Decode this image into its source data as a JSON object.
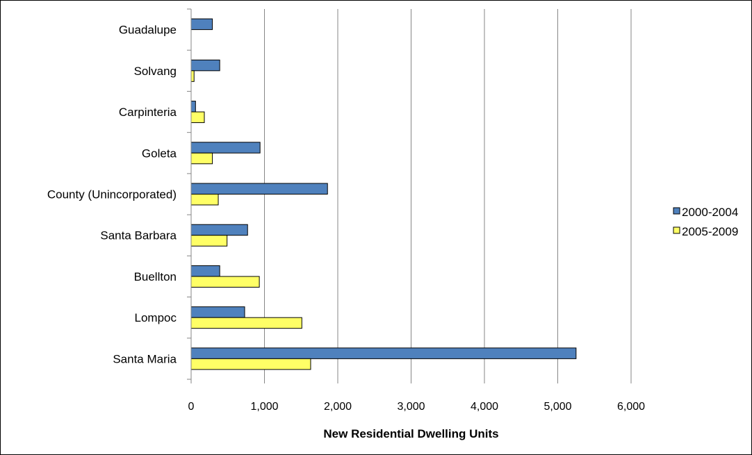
{
  "chart_data": {
    "type": "bar",
    "orientation": "horizontal",
    "categories": [
      "Guadalupe",
      "Solvang",
      "Carpinteria",
      "Goleta",
      "County (Unincorporated)",
      "Santa Barbara",
      "Buellton",
      "Lompoc",
      "Santa Maria"
    ],
    "series": [
      {
        "name": "2000-2004",
        "color": "#4F81BD",
        "values": [
          290,
          390,
          60,
          940,
          1860,
          770,
          390,
          730,
          5250
        ]
      },
      {
        "name": "2005-2009",
        "color": "#FFFF66",
        "values": [
          0,
          40,
          180,
          290,
          370,
          490,
          930,
          1510,
          1630
        ]
      }
    ],
    "title": "",
    "xlabel": "New Residential  Dwelling Units",
    "ylabel": "",
    "xlim": [
      0,
      6000
    ],
    "x_ticks": [
      0,
      1000,
      2000,
      3000,
      4000,
      5000,
      6000
    ],
    "x_tick_labels": [
      "0",
      "1,000",
      "2,000",
      "3,000",
      "4,000",
      "5,000",
      "6,000"
    ],
    "grid": "vertical",
    "legend_position": "right"
  }
}
